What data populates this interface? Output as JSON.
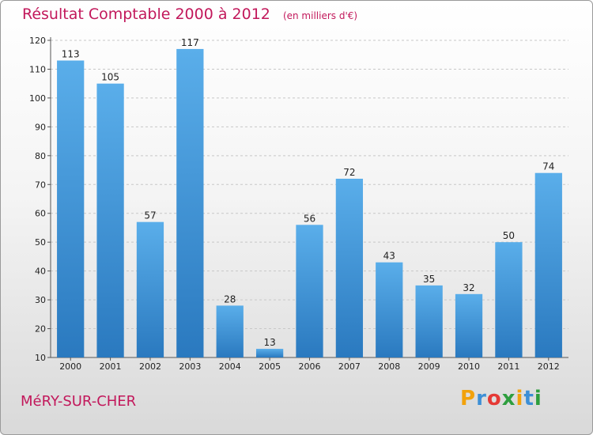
{
  "chart_data": {
    "type": "bar",
    "title": "Résultat Comptable 2000 à 2012",
    "subtitle": "(en milliers d'€)",
    "categories": [
      "2000",
      "2001",
      "2002",
      "2003",
      "2004",
      "2005",
      "2006",
      "2007",
      "2008",
      "2009",
      "2010",
      "2011",
      "2012"
    ],
    "values": [
      113,
      105,
      57,
      117,
      28,
      13,
      56,
      72,
      43,
      35,
      32,
      50,
      74
    ],
    "ylim": [
      10,
      120
    ],
    "yticks": [
      10,
      20,
      30,
      40,
      50,
      60,
      70,
      80,
      90,
      100,
      110,
      120
    ],
    "grid": true,
    "bar_color": "#3d8fd6"
  },
  "footer": {
    "city": "MéRY-SUR-CHER"
  },
  "logo": {
    "letters": [
      {
        "char": "P",
        "color": "#f2a20c"
      },
      {
        "char": "r",
        "color": "#3d8fd6"
      },
      {
        "char": "o",
        "color": "#e53935"
      },
      {
        "char": "x",
        "color": "#2e9e3e"
      },
      {
        "char": "i",
        "color": "#f2a20c"
      },
      {
        "char": "t",
        "color": "#3d8fd6"
      },
      {
        "char": "i",
        "color": "#2e9e3e"
      }
    ]
  }
}
